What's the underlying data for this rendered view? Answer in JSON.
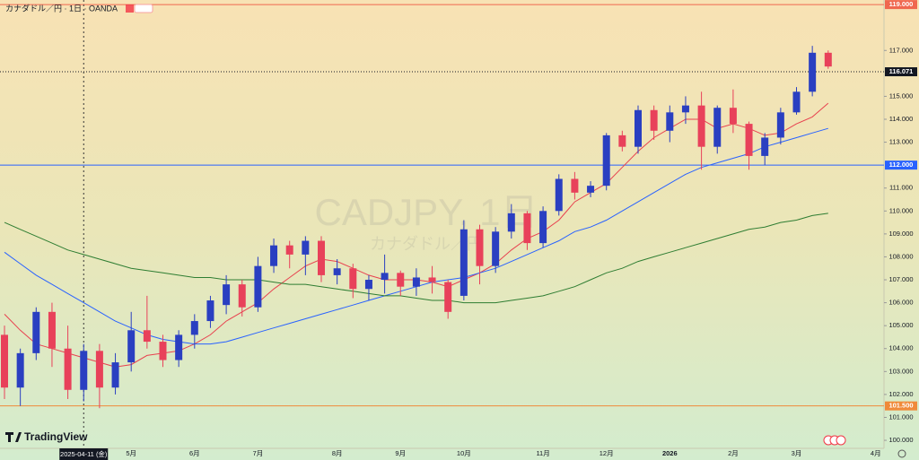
{
  "chart_data": {
    "type": "candlestick",
    "title": "カナダドル／円 · 1日 · OANDA",
    "watermark": "CADJPY, 1日",
    "watermark_subtitle": "カナダドル／円",
    "logo": "TradingView",
    "crosshair_label": "2025-04-11 (金)",
    "categories": [
      null,
      null,
      null,
      null,
      null,
      null,
      null,
      null,
      "5月",
      null,
      null,
      null,
      "6月",
      null,
      null,
      null,
      "7月",
      null,
      null,
      null,
      null,
      "8月",
      null,
      null,
      null,
      "9月",
      null,
      null,
      null,
      "10月",
      null,
      null,
      null,
      null,
      "11月",
      null,
      null,
      null,
      "12月",
      null,
      null,
      null,
      "2026",
      null,
      null,
      null,
      "2月",
      null,
      null,
      null,
      "3月",
      null,
      null,
      null,
      null,
      "4月"
    ],
    "open": [
      104.6,
      102.3,
      103.8,
      105.6,
      104.0,
      102.2,
      103.9,
      102.3,
      103.4,
      104.8,
      104.3,
      103.5,
      104.6,
      105.2,
      105.9,
      106.8,
      105.8,
      107.6,
      108.5,
      108.1,
      108.7,
      107.2,
      107.5,
      106.6,
      107.0,
      107.3,
      106.7,
      107.1,
      106.9,
      106.3,
      109.2,
      107.6,
      109.1,
      109.9,
      108.6,
      110.0,
      111.4,
      110.8,
      111.1,
      113.3,
      112.8,
      114.4,
      113.5,
      114.3,
      114.6,
      112.8,
      114.5,
      113.8,
      112.4,
      113.2,
      114.3,
      115.2,
      116.9,
      null,
      null,
      null
    ],
    "high": [
      105.0,
      104.0,
      105.8,
      106.0,
      105.0,
      104.2,
      104.2,
      103.8,
      105.6,
      106.3,
      104.6,
      104.8,
      105.5,
      106.3,
      107.2,
      107.0,
      108.0,
      108.8,
      108.7,
      108.9,
      108.9,
      107.9,
      107.7,
      107.2,
      108.1,
      107.4,
      107.5,
      107.6,
      107.0,
      109.6,
      109.4,
      109.3,
      110.3,
      110.0,
      110.2,
      111.6,
      111.7,
      111.3,
      113.4,
      113.5,
      114.6,
      114.6,
      114.6,
      115.0,
      115.2,
      114.6,
      115.3,
      113.9,
      113.4,
      114.5,
      115.4,
      117.2,
      117.0,
      null,
      null,
      null
    ],
    "low": [
      101.8,
      101.5,
      103.5,
      103.2,
      101.8,
      101.7,
      101.4,
      102.0,
      103.0,
      104.0,
      103.2,
      103.2,
      104.0,
      104.9,
      105.5,
      105.4,
      105.6,
      107.3,
      107.5,
      107.2,
      106.9,
      106.8,
      106.2,
      106.1,
      106.4,
      106.3,
      106.3,
      106.4,
      105.3,
      106.1,
      106.8,
      107.3,
      108.8,
      108.3,
      108.4,
      109.8,
      110.5,
      110.6,
      110.9,
      112.6,
      112.5,
      113.1,
      113.0,
      113.8,
      111.8,
      112.5,
      113.4,
      111.8,
      112.0,
      112.9,
      114.2,
      115.0,
      116.2,
      null,
      null,
      null
    ],
    "close": [
      102.3,
      103.8,
      105.6,
      104.0,
      102.2,
      103.9,
      102.3,
      103.4,
      104.8,
      104.3,
      103.5,
      104.6,
      105.2,
      106.1,
      106.8,
      105.8,
      107.6,
      108.5,
      108.1,
      108.7,
      107.2,
      107.5,
      106.6,
      107.0,
      107.3,
      106.7,
      107.1,
      106.9,
      105.6,
      109.2,
      107.6,
      109.1,
      109.9,
      108.6,
      110.0,
      111.4,
      110.8,
      111.1,
      113.3,
      112.8,
      114.4,
      113.5,
      114.3,
      114.6,
      112.8,
      114.5,
      113.8,
      112.4,
      113.2,
      114.3,
      115.2,
      116.9,
      116.3,
      null,
      null,
      null
    ],
    "up_color": "#2a3fc1",
    "down_color": "#e8415a",
    "series": [
      {
        "color": "#e8414f",
        "values": [
          105.5,
          104.8,
          104.2,
          104.0,
          103.8,
          103.6,
          103.4,
          103.2,
          103.3,
          103.7,
          103.8,
          103.9,
          104.2,
          104.6,
          105.2,
          105.6,
          106.0,
          106.6,
          107.1,
          107.6,
          107.9,
          107.8,
          107.5,
          107.2,
          107.0,
          107.0,
          107.0,
          106.9,
          106.7,
          107.0,
          107.3,
          107.7,
          108.3,
          108.8,
          109.1,
          109.6,
          110.4,
          110.8,
          111.2,
          111.9,
          112.6,
          113.2,
          113.6,
          114.0,
          114.0,
          113.6,
          113.8,
          113.6,
          113.3,
          113.4,
          113.8,
          114.1,
          114.7,
          null,
          null,
          null
        ]
      },
      {
        "color": "#2962ff",
        "values": [
          108.2,
          107.7,
          107.2,
          106.8,
          106.4,
          106.0,
          105.6,
          105.2,
          104.9,
          104.6,
          104.4,
          104.3,
          104.2,
          104.2,
          104.3,
          104.5,
          104.7,
          104.9,
          105.1,
          105.3,
          105.5,
          105.7,
          105.9,
          106.1,
          106.3,
          106.5,
          106.7,
          106.9,
          107.0,
          107.1,
          107.3,
          107.5,
          107.8,
          108.1,
          108.4,
          108.7,
          109.1,
          109.3,
          109.6,
          110.0,
          110.4,
          110.8,
          111.2,
          111.6,
          111.9,
          112.1,
          112.3,
          112.5,
          112.8,
          113.0,
          113.2,
          113.4,
          113.6,
          null,
          null,
          null
        ]
      },
      {
        "color": "#2e7d32",
        "values": [
          109.5,
          109.2,
          108.9,
          108.6,
          108.3,
          108.1,
          107.9,
          107.7,
          107.5,
          107.4,
          107.3,
          107.2,
          107.1,
          107.1,
          107.0,
          107.0,
          107.0,
          106.9,
          106.8,
          106.8,
          106.7,
          106.6,
          106.5,
          106.4,
          106.3,
          106.3,
          106.2,
          106.1,
          106.1,
          106.0,
          106.0,
          106.0,
          106.1,
          106.2,
          106.3,
          106.5,
          106.7,
          107.0,
          107.3,
          107.5,
          107.8,
          108.0,
          108.2,
          108.4,
          108.6,
          108.8,
          109.0,
          109.2,
          109.3,
          109.5,
          109.6,
          109.8,
          109.9,
          null,
          null,
          null
        ]
      }
    ],
    "ylim": [
      99.65,
      119.2
    ],
    "yticks": [
      {
        "value": 100,
        "label": "100.000"
      },
      {
        "value": 101,
        "label": "101.000"
      },
      {
        "value": 102,
        "label": "102.000"
      },
      {
        "value": 103,
        "label": "103.000"
      },
      {
        "value": 104,
        "label": "104.000"
      },
      {
        "value": 105,
        "label": "105.000"
      },
      {
        "value": 106,
        "label": "106.000"
      },
      {
        "value": 107,
        "label": "107.000"
      },
      {
        "value": 108,
        "label": "108.000"
      },
      {
        "value": 109,
        "label": "109.000"
      },
      {
        "value": 110,
        "label": "110.000"
      },
      {
        "value": 111,
        "label": "111.000"
      },
      {
        "value": 113,
        "label": "113.000"
      },
      {
        "value": 114,
        "label": "114.000"
      },
      {
        "value": 115,
        "label": "115.000"
      },
      {
        "value": 117,
        "label": "117.000"
      }
    ],
    "hlines": [
      {
        "value": 119,
        "label": "119.000",
        "color": "#f0674f"
      },
      {
        "value": 116.071,
        "label": "116.071",
        "color": "#131722"
      },
      {
        "value": 112,
        "label": "112.000",
        "color": "#2962ff"
      },
      {
        "value": 101.5,
        "label": "101.500",
        "color": "#f08a3a"
      }
    ]
  }
}
